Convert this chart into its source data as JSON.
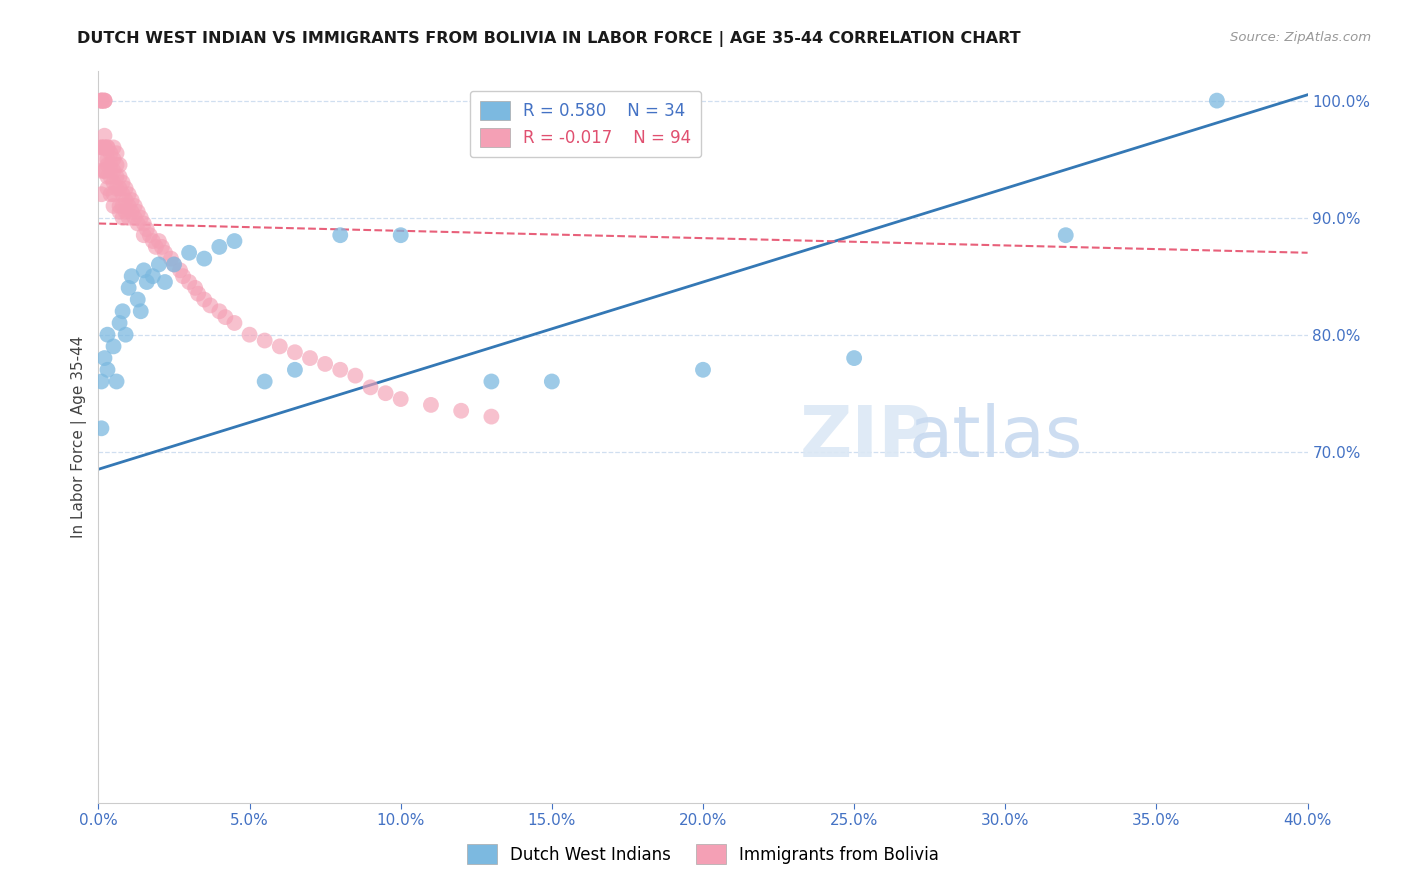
{
  "title": "DUTCH WEST INDIAN VS IMMIGRANTS FROM BOLIVIA IN LABOR FORCE | AGE 35-44 CORRELATION CHART",
  "source": "Source: ZipAtlas.com",
  "ylabel": "In Labor Force | Age 35-44",
  "xmin": 0.0,
  "xmax": 0.4,
  "ymin": 0.4,
  "ymax": 1.025,
  "ytick_right": [
    0.7,
    0.8,
    0.9,
    1.0
  ],
  "ytick_right_labels": [
    "70.0%",
    "80.0%",
    "90.0%",
    "100.0%"
  ],
  "xticks": [
    0.0,
    0.05,
    0.1,
    0.15,
    0.2,
    0.25,
    0.3,
    0.35,
    0.4
  ],
  "xtick_labels": [
    "0.0%",
    "5.0%",
    "10.0%",
    "15.0%",
    "20.0%",
    "25.0%",
    "30.0%",
    "35.0%",
    "40.0%"
  ],
  "legend_blue_label": "Dutch West Indians",
  "legend_pink_label": "Immigrants from Bolivia",
  "R_blue": 0.58,
  "N_blue": 34,
  "R_pink": -0.017,
  "N_pink": 94,
  "blue_color": "#7cb9e0",
  "pink_color": "#f4a0b5",
  "blue_line_color": "#3478b5",
  "pink_line_color": "#e8607a",
  "grid_color": "#d0dff0",
  "background_color": "#ffffff",
  "blue_scatter_x": [
    0.001,
    0.001,
    0.002,
    0.003,
    0.003,
    0.005,
    0.006,
    0.007,
    0.008,
    0.009,
    0.01,
    0.011,
    0.013,
    0.014,
    0.015,
    0.016,
    0.018,
    0.02,
    0.022,
    0.025,
    0.03,
    0.035,
    0.04,
    0.045,
    0.055,
    0.065,
    0.08,
    0.1,
    0.13,
    0.15,
    0.2,
    0.25,
    0.32,
    0.37
  ],
  "blue_scatter_y": [
    0.76,
    0.72,
    0.78,
    0.8,
    0.77,
    0.79,
    0.76,
    0.81,
    0.82,
    0.8,
    0.84,
    0.85,
    0.83,
    0.82,
    0.855,
    0.845,
    0.85,
    0.86,
    0.845,
    0.86,
    0.87,
    0.865,
    0.875,
    0.88,
    0.76,
    0.77,
    0.885,
    0.885,
    0.76,
    0.76,
    0.77,
    0.78,
    0.885,
    1.0
  ],
  "pink_scatter_x": [
    0.001,
    0.001,
    0.001,
    0.001,
    0.001,
    0.002,
    0.002,
    0.002,
    0.002,
    0.002,
    0.002,
    0.002,
    0.003,
    0.003,
    0.003,
    0.003,
    0.003,
    0.004,
    0.004,
    0.004,
    0.004,
    0.005,
    0.005,
    0.005,
    0.005,
    0.005,
    0.005,
    0.006,
    0.006,
    0.006,
    0.006,
    0.007,
    0.007,
    0.007,
    0.007,
    0.007,
    0.008,
    0.008,
    0.008,
    0.008,
    0.009,
    0.009,
    0.009,
    0.01,
    0.01,
    0.01,
    0.011,
    0.011,
    0.012,
    0.012,
    0.013,
    0.013,
    0.014,
    0.015,
    0.015,
    0.016,
    0.017,
    0.018,
    0.019,
    0.02,
    0.021,
    0.022,
    0.024,
    0.025,
    0.027,
    0.028,
    0.03,
    0.032,
    0.033,
    0.035,
    0.037,
    0.04,
    0.042,
    0.045,
    0.05,
    0.055,
    0.06,
    0.065,
    0.07,
    0.075,
    0.08,
    0.085,
    0.09,
    0.095,
    0.1,
    0.11,
    0.12,
    0.13,
    0.001,
    0.001,
    0.001,
    0.002,
    0.002,
    0.003
  ],
  "pink_scatter_y": [
    1.0,
    1.0,
    1.0,
    1.0,
    0.96,
    1.0,
    1.0,
    1.0,
    0.97,
    0.95,
    0.94,
    0.96,
    0.95,
    0.945,
    0.935,
    0.925,
    0.96,
    0.955,
    0.945,
    0.935,
    0.92,
    0.96,
    0.95,
    0.94,
    0.93,
    0.92,
    0.91,
    0.955,
    0.945,
    0.935,
    0.925,
    0.945,
    0.935,
    0.925,
    0.91,
    0.905,
    0.93,
    0.92,
    0.91,
    0.9,
    0.925,
    0.915,
    0.905,
    0.92,
    0.91,
    0.9,
    0.915,
    0.905,
    0.91,
    0.9,
    0.905,
    0.895,
    0.9,
    0.895,
    0.885,
    0.89,
    0.885,
    0.88,
    0.875,
    0.88,
    0.875,
    0.87,
    0.865,
    0.86,
    0.855,
    0.85,
    0.845,
    0.84,
    0.835,
    0.83,
    0.825,
    0.82,
    0.815,
    0.81,
    0.8,
    0.795,
    0.79,
    0.785,
    0.78,
    0.775,
    0.77,
    0.765,
    0.755,
    0.75,
    0.745,
    0.74,
    0.735,
    0.73,
    0.96,
    0.94,
    0.92,
    0.96,
    0.94,
    0.96
  ],
  "blue_line_x": [
    0.0,
    0.4
  ],
  "blue_line_y": [
    0.685,
    1.005
  ],
  "pink_line_x": [
    0.0,
    0.4
  ],
  "pink_line_y": [
    0.895,
    0.87
  ]
}
